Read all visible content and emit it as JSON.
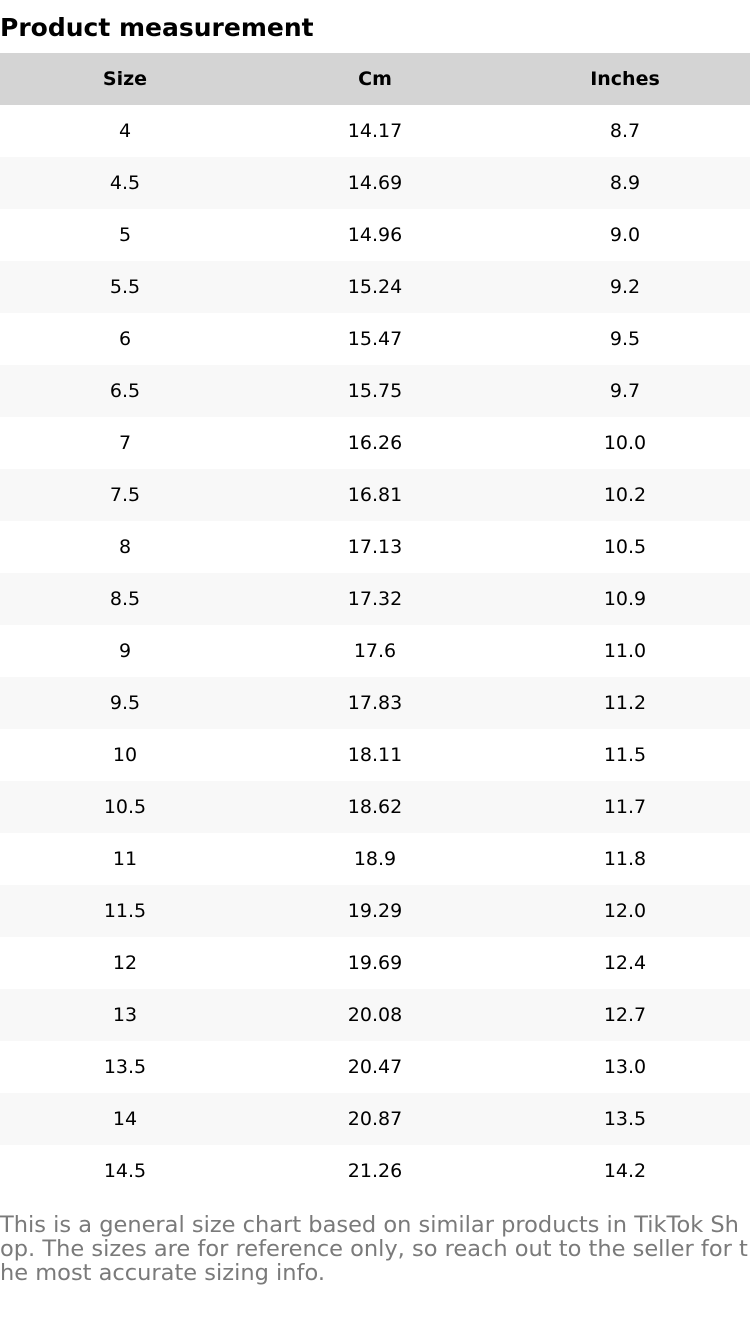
{
  "title": "Product measurement",
  "table": {
    "headers": [
      "Size",
      "Cm",
      "Inches"
    ],
    "rows": [
      [
        "4",
        "14.17",
        "8.7"
      ],
      [
        "4.5",
        "14.69",
        "8.9"
      ],
      [
        "5",
        "14.96",
        "9.0"
      ],
      [
        "5.5",
        "15.24",
        "9.2"
      ],
      [
        "6",
        "15.47",
        "9.5"
      ],
      [
        "6.5",
        "15.75",
        "9.7"
      ],
      [
        "7",
        "16.26",
        "10.0"
      ],
      [
        "7.5",
        "16.81",
        "10.2"
      ],
      [
        "8",
        "17.13",
        "10.5"
      ],
      [
        "8.5",
        "17.32",
        "10.9"
      ],
      [
        "9",
        "17.6",
        "11.0"
      ],
      [
        "9.5",
        "17.83",
        "11.2"
      ],
      [
        "10",
        "18.11",
        "11.5"
      ],
      [
        "10.5",
        "18.62",
        "11.7"
      ],
      [
        "11",
        "18.9",
        "11.8"
      ],
      [
        "11.5",
        "19.29",
        "12.0"
      ],
      [
        "12",
        "19.69",
        "12.4"
      ],
      [
        "13",
        "20.08",
        "12.7"
      ],
      [
        "13.5",
        "20.47",
        "13.0"
      ],
      [
        "14",
        "20.87",
        "13.5"
      ],
      [
        "14.5",
        "21.26",
        "14.2"
      ]
    ]
  },
  "note": "This is a general size chart based on similar products in TikTok Shop. The sizes are for reference only, so reach out to the seller for the most accurate sizing info.",
  "colors": {
    "header_bg": "#d4d4d4",
    "stripe_bg": "#f8f8f8",
    "note_text": "#7a7a7a"
  }
}
